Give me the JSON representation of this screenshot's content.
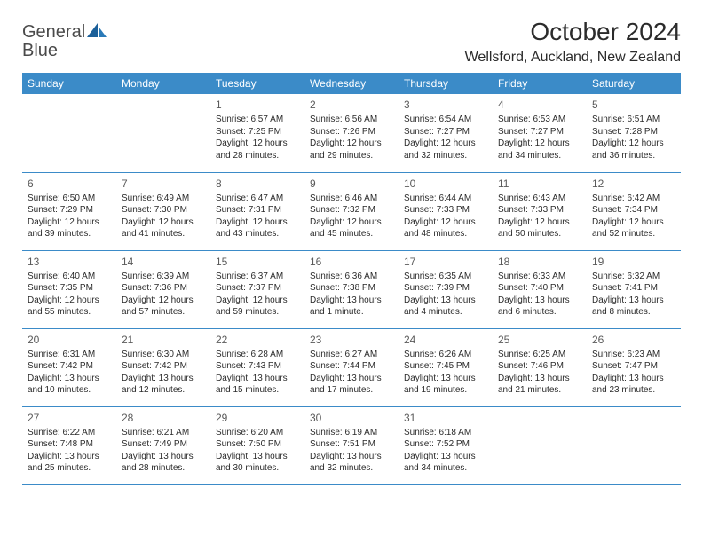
{
  "logo": {
    "text1": "General",
    "text2": "Blue"
  },
  "title": "October 2024",
  "location": "Wellsford, Auckland, New Zealand",
  "colors": {
    "header_bg": "#3b8bc8",
    "header_text": "#ffffff",
    "text": "#2b2b2b",
    "logo_gray": "#4a4a4a",
    "logo_blue": "#2a7ab8",
    "border": "#3b8bc8",
    "background": "#ffffff"
  },
  "typography": {
    "title_fontsize": 28,
    "location_fontsize": 16,
    "dayhead_fontsize": 12,
    "daynum_fontsize": 12,
    "cell_fontsize": 10
  },
  "day_headers": [
    "Sunday",
    "Monday",
    "Tuesday",
    "Wednesday",
    "Thursday",
    "Friday",
    "Saturday"
  ],
  "weeks": [
    [
      null,
      null,
      {
        "n": "1",
        "sr": "6:57 AM",
        "ss": "7:25 PM",
        "dl": "12 hours and 28 minutes."
      },
      {
        "n": "2",
        "sr": "6:56 AM",
        "ss": "7:26 PM",
        "dl": "12 hours and 29 minutes."
      },
      {
        "n": "3",
        "sr": "6:54 AM",
        "ss": "7:27 PM",
        "dl": "12 hours and 32 minutes."
      },
      {
        "n": "4",
        "sr": "6:53 AM",
        "ss": "7:27 PM",
        "dl": "12 hours and 34 minutes."
      },
      {
        "n": "5",
        "sr": "6:51 AM",
        "ss": "7:28 PM",
        "dl": "12 hours and 36 minutes."
      }
    ],
    [
      {
        "n": "6",
        "sr": "6:50 AM",
        "ss": "7:29 PM",
        "dl": "12 hours and 39 minutes."
      },
      {
        "n": "7",
        "sr": "6:49 AM",
        "ss": "7:30 PM",
        "dl": "12 hours and 41 minutes."
      },
      {
        "n": "8",
        "sr": "6:47 AM",
        "ss": "7:31 PM",
        "dl": "12 hours and 43 minutes."
      },
      {
        "n": "9",
        "sr": "6:46 AM",
        "ss": "7:32 PM",
        "dl": "12 hours and 45 minutes."
      },
      {
        "n": "10",
        "sr": "6:44 AM",
        "ss": "7:33 PM",
        "dl": "12 hours and 48 minutes."
      },
      {
        "n": "11",
        "sr": "6:43 AM",
        "ss": "7:33 PM",
        "dl": "12 hours and 50 minutes."
      },
      {
        "n": "12",
        "sr": "6:42 AM",
        "ss": "7:34 PM",
        "dl": "12 hours and 52 minutes."
      }
    ],
    [
      {
        "n": "13",
        "sr": "6:40 AM",
        "ss": "7:35 PM",
        "dl": "12 hours and 55 minutes."
      },
      {
        "n": "14",
        "sr": "6:39 AM",
        "ss": "7:36 PM",
        "dl": "12 hours and 57 minutes."
      },
      {
        "n": "15",
        "sr": "6:37 AM",
        "ss": "7:37 PM",
        "dl": "12 hours and 59 minutes."
      },
      {
        "n": "16",
        "sr": "6:36 AM",
        "ss": "7:38 PM",
        "dl": "13 hours and 1 minute."
      },
      {
        "n": "17",
        "sr": "6:35 AM",
        "ss": "7:39 PM",
        "dl": "13 hours and 4 minutes."
      },
      {
        "n": "18",
        "sr": "6:33 AM",
        "ss": "7:40 PM",
        "dl": "13 hours and 6 minutes."
      },
      {
        "n": "19",
        "sr": "6:32 AM",
        "ss": "7:41 PM",
        "dl": "13 hours and 8 minutes."
      }
    ],
    [
      {
        "n": "20",
        "sr": "6:31 AM",
        "ss": "7:42 PM",
        "dl": "13 hours and 10 minutes."
      },
      {
        "n": "21",
        "sr": "6:30 AM",
        "ss": "7:42 PM",
        "dl": "13 hours and 12 minutes."
      },
      {
        "n": "22",
        "sr": "6:28 AM",
        "ss": "7:43 PM",
        "dl": "13 hours and 15 minutes."
      },
      {
        "n": "23",
        "sr": "6:27 AM",
        "ss": "7:44 PM",
        "dl": "13 hours and 17 minutes."
      },
      {
        "n": "24",
        "sr": "6:26 AM",
        "ss": "7:45 PM",
        "dl": "13 hours and 19 minutes."
      },
      {
        "n": "25",
        "sr": "6:25 AM",
        "ss": "7:46 PM",
        "dl": "13 hours and 21 minutes."
      },
      {
        "n": "26",
        "sr": "6:23 AM",
        "ss": "7:47 PM",
        "dl": "13 hours and 23 minutes."
      }
    ],
    [
      {
        "n": "27",
        "sr": "6:22 AM",
        "ss": "7:48 PM",
        "dl": "13 hours and 25 minutes."
      },
      {
        "n": "28",
        "sr": "6:21 AM",
        "ss": "7:49 PM",
        "dl": "13 hours and 28 minutes."
      },
      {
        "n": "29",
        "sr": "6:20 AM",
        "ss": "7:50 PM",
        "dl": "13 hours and 30 minutes."
      },
      {
        "n": "30",
        "sr": "6:19 AM",
        "ss": "7:51 PM",
        "dl": "13 hours and 32 minutes."
      },
      {
        "n": "31",
        "sr": "6:18 AM",
        "ss": "7:52 PM",
        "dl": "13 hours and 34 minutes."
      },
      null,
      null
    ]
  ],
  "labels": {
    "sunrise_prefix": "Sunrise: ",
    "sunset_prefix": "Sunset: ",
    "daylight_prefix": "Daylight: "
  }
}
